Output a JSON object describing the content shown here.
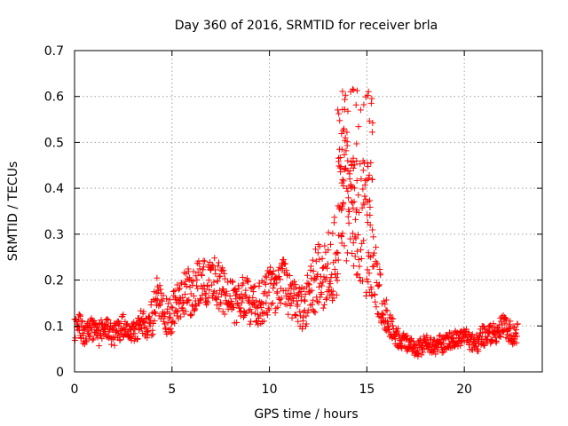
{
  "chart_data": {
    "type": "scatter",
    "title": "Day 360 of 2016, SRMTID for receiver brla",
    "xlabel": "GPS time / hours",
    "ylabel": "SRMTID / TECUs",
    "xlim": [
      0,
      24
    ],
    "ylim": [
      0,
      0.7
    ],
    "x_ticks": [
      0,
      5,
      10,
      15,
      20
    ],
    "x_tick_labels": [
      "0",
      "5",
      "10",
      "15",
      "20"
    ],
    "y_ticks": [
      0,
      0.1,
      0.2,
      0.3,
      0.4,
      0.5,
      0.6,
      0.7
    ],
    "y_tick_labels": [
      "0",
      "0.1",
      "0.2",
      "0.3",
      "0.4",
      "0.5",
      "0.6",
      "0.7"
    ],
    "grid": true,
    "marker": "+",
    "color": "#ff0000",
    "series": [
      {
        "name": "SRMTID brla",
        "profile_description": "dense plus-marker scatter; points below are representative samples of the trend",
        "x": [
          0.0,
          0.25,
          0.5,
          0.75,
          1.0,
          1.25,
          1.5,
          1.75,
          2.0,
          2.25,
          2.5,
          2.75,
          3.0,
          3.25,
          3.5,
          3.75,
          4.0,
          4.25,
          4.5,
          4.75,
          5.0,
          5.25,
          5.5,
          5.75,
          6.0,
          6.25,
          6.5,
          6.75,
          7.0,
          7.25,
          7.5,
          7.75,
          8.0,
          8.25,
          8.5,
          8.75,
          9.0,
          9.25,
          9.5,
          9.75,
          10.0,
          10.25,
          10.5,
          10.75,
          11.0,
          11.25,
          11.5,
          11.75,
          12.0,
          12.25,
          12.5,
          12.75,
          13.0,
          13.25,
          13.5,
          13.75,
          14.0,
          14.25,
          14.5,
          14.75,
          15.0,
          15.25,
          15.5,
          15.75,
          16.0,
          16.25,
          16.5,
          16.75,
          17.0,
          17.25,
          17.5,
          17.75,
          18.0,
          18.25,
          18.5,
          18.75,
          19.0,
          19.25,
          19.5,
          19.75,
          20.0,
          20.25,
          20.5,
          20.75,
          21.0,
          21.25,
          21.5,
          21.75,
          22.0,
          22.25,
          22.5,
          22.75
        ],
        "y": [
          0.09,
          0.1,
          0.08,
          0.1,
          0.09,
          0.08,
          0.1,
          0.09,
          0.08,
          0.09,
          0.1,
          0.08,
          0.09,
          0.1,
          0.11,
          0.1,
          0.12,
          0.16,
          0.14,
          0.12,
          0.13,
          0.16,
          0.17,
          0.18,
          0.17,
          0.19,
          0.2,
          0.19,
          0.21,
          0.2,
          0.18,
          0.17,
          0.16,
          0.15,
          0.16,
          0.17,
          0.15,
          0.14,
          0.15,
          0.16,
          0.18,
          0.17,
          0.19,
          0.2,
          0.17,
          0.16,
          0.15,
          0.14,
          0.16,
          0.19,
          0.21,
          0.2,
          0.22,
          0.24,
          0.28,
          0.42,
          0.38,
          0.32,
          0.3,
          0.34,
          0.3,
          0.26,
          0.2,
          0.16,
          0.12,
          0.1,
          0.08,
          0.07,
          0.06,
          0.06,
          0.05,
          0.055,
          0.06,
          0.06,
          0.05,
          0.06,
          0.06,
          0.07,
          0.07,
          0.07,
          0.08,
          0.07,
          0.06,
          0.07,
          0.08,
          0.09,
          0.08,
          0.09,
          0.1,
          0.09,
          0.08,
          0.08
        ],
        "spread": [
          0.025,
          0.03,
          0.025,
          0.025,
          0.025,
          0.025,
          0.025,
          0.025,
          0.025,
          0.025,
          0.025,
          0.025,
          0.025,
          0.03,
          0.03,
          0.03,
          0.04,
          0.05,
          0.04,
          0.04,
          0.045,
          0.05,
          0.05,
          0.05,
          0.05,
          0.05,
          0.05,
          0.05,
          0.05,
          0.05,
          0.05,
          0.05,
          0.05,
          0.05,
          0.05,
          0.05,
          0.05,
          0.05,
          0.05,
          0.05,
          0.05,
          0.05,
          0.05,
          0.05,
          0.05,
          0.05,
          0.05,
          0.05,
          0.06,
          0.07,
          0.07,
          0.07,
          0.08,
          0.09,
          0.12,
          0.18,
          0.16,
          0.12,
          0.12,
          0.16,
          0.14,
          0.1,
          0.07,
          0.06,
          0.04,
          0.03,
          0.025,
          0.02,
          0.02,
          0.02,
          0.02,
          0.02,
          0.02,
          0.02,
          0.02,
          0.02,
          0.02,
          0.02,
          0.02,
          0.02,
          0.02,
          0.02,
          0.02,
          0.025,
          0.025,
          0.025,
          0.025,
          0.025,
          0.025,
          0.025,
          0.025,
          0.025
        ]
      }
    ]
  }
}
